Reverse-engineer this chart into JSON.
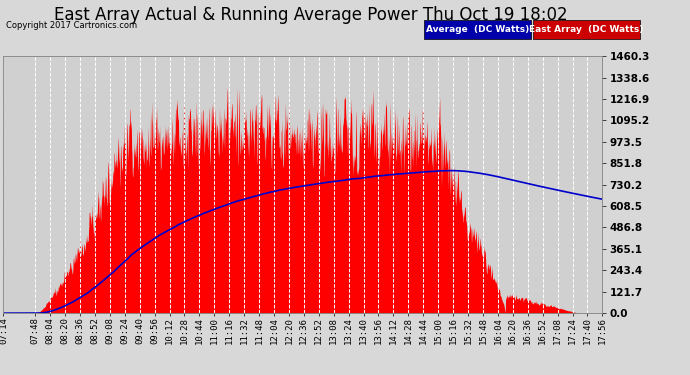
{
  "title": "East Array Actual & Running Average Power Thu Oct 19 18:02",
  "copyright": "Copyright 2017 Cartronics.com",
  "legend_labels": [
    "Average  (DC Watts)",
    "East Array  (DC Watts)"
  ],
  "ymin": 0.0,
  "ymax": 1460.3,
  "yticks": [
    0.0,
    121.7,
    243.4,
    365.1,
    486.8,
    608.5,
    730.2,
    851.8,
    973.5,
    1095.2,
    1216.9,
    1338.6,
    1460.3
  ],
  "bg_color": "#d8d8d8",
  "plot_bg_color": "#d0d0d0",
  "grid_color": "#ffffff",
  "area_color": "#ff0000",
  "line_color": "#0000cc",
  "title_fontsize": 12,
  "tick_fontsize": 6.5,
  "xtick_labels": [
    "07:14",
    "07:48",
    "08:04",
    "08:20",
    "08:36",
    "08:52",
    "09:08",
    "09:24",
    "09:40",
    "09:56",
    "10:12",
    "10:28",
    "10:44",
    "11:00",
    "11:16",
    "11:32",
    "11:48",
    "12:04",
    "12:20",
    "12:36",
    "12:52",
    "13:08",
    "13:24",
    "13:40",
    "13:56",
    "14:12",
    "14:28",
    "14:44",
    "15:00",
    "15:16",
    "15:32",
    "15:48",
    "16:04",
    "16:20",
    "16:36",
    "16:52",
    "17:08",
    "17:24",
    "17:40",
    "17:56"
  ]
}
